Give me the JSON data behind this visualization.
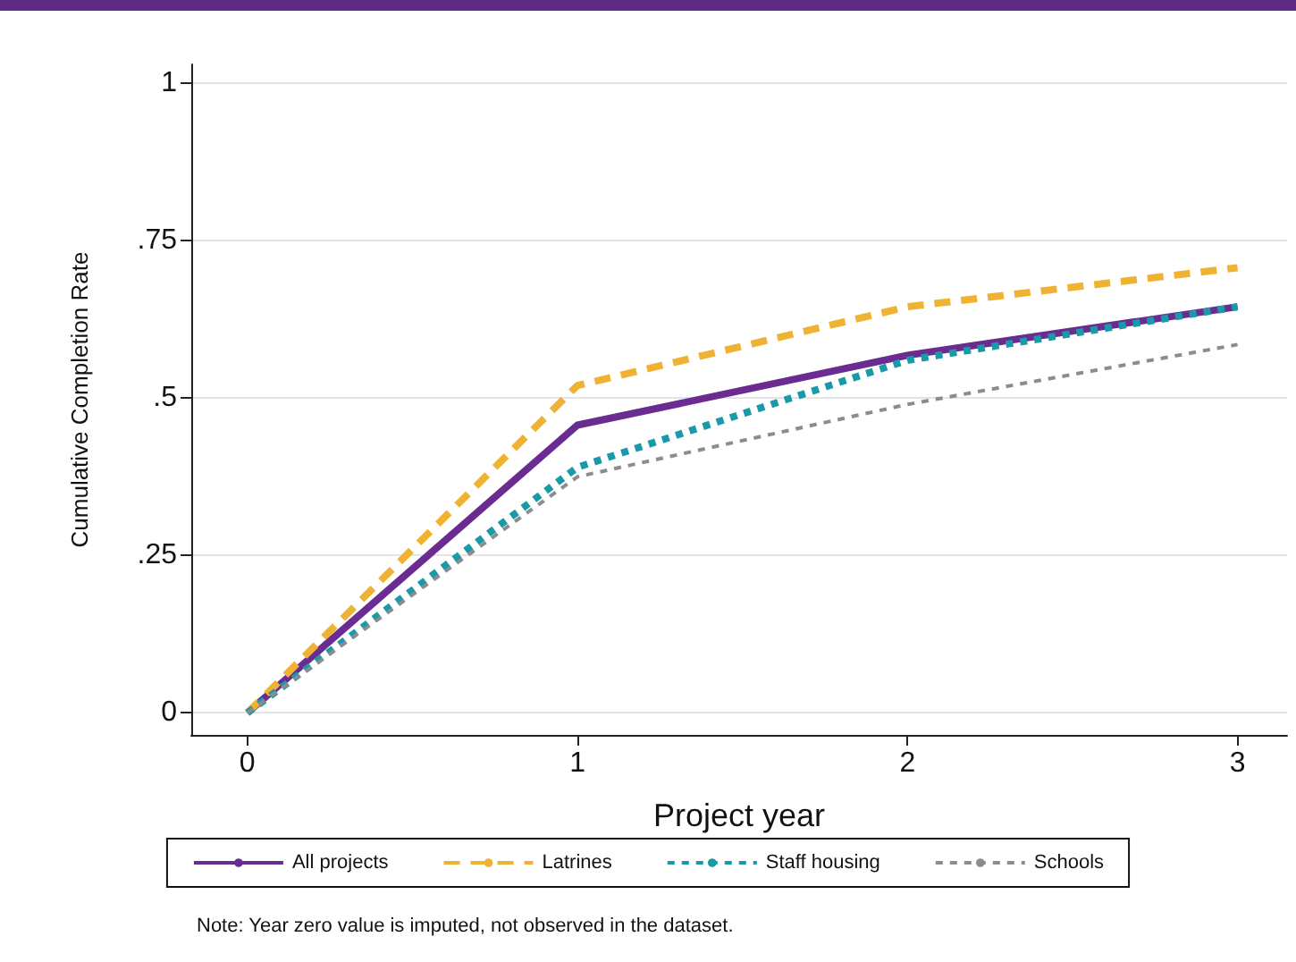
{
  "chart_data": {
    "type": "line",
    "x": [
      0,
      1,
      2,
      3
    ],
    "series": [
      {
        "name": "All projects",
        "color": "#6a2c91",
        "line_style": "solid",
        "values": [
          0,
          0.457,
          0.568,
          0.645
        ]
      },
      {
        "name": "Latrines",
        "color": "#f0b232",
        "line_style": "dashed",
        "values": [
          0,
          0.52,
          0.645,
          0.707
        ]
      },
      {
        "name": "Staff housing",
        "color": "#1a9aa8",
        "line_style": "dotted",
        "values": [
          0,
          0.39,
          0.56,
          0.645
        ]
      },
      {
        "name": "Schools",
        "color": "#8c8c8c",
        "line_style": "dotted",
        "values": [
          0,
          0.375,
          0.49,
          0.585
        ]
      }
    ],
    "xlabel": "Project year",
    "ylabel": "Cumulative Completion Rate",
    "xlim": [
      -0.17,
      3.15
    ],
    "xticks": [
      0,
      1,
      2,
      3
    ],
    "ylim": [
      -0.035,
      1.03
    ],
    "yticks": [
      {
        "value": 0,
        "label": "0"
      },
      {
        "value": 0.25,
        "label": ".25"
      },
      {
        "value": 0.5,
        "label": ".5"
      },
      {
        "value": 0.75,
        "label": ".75"
      },
      {
        "value": 1,
        "label": "1"
      }
    ],
    "grid": "y",
    "legend": "bottom",
    "marker": "none",
    "annotations": [
      "Note: Year zero value is imputed, not observed in the dataset."
    ]
  }
}
